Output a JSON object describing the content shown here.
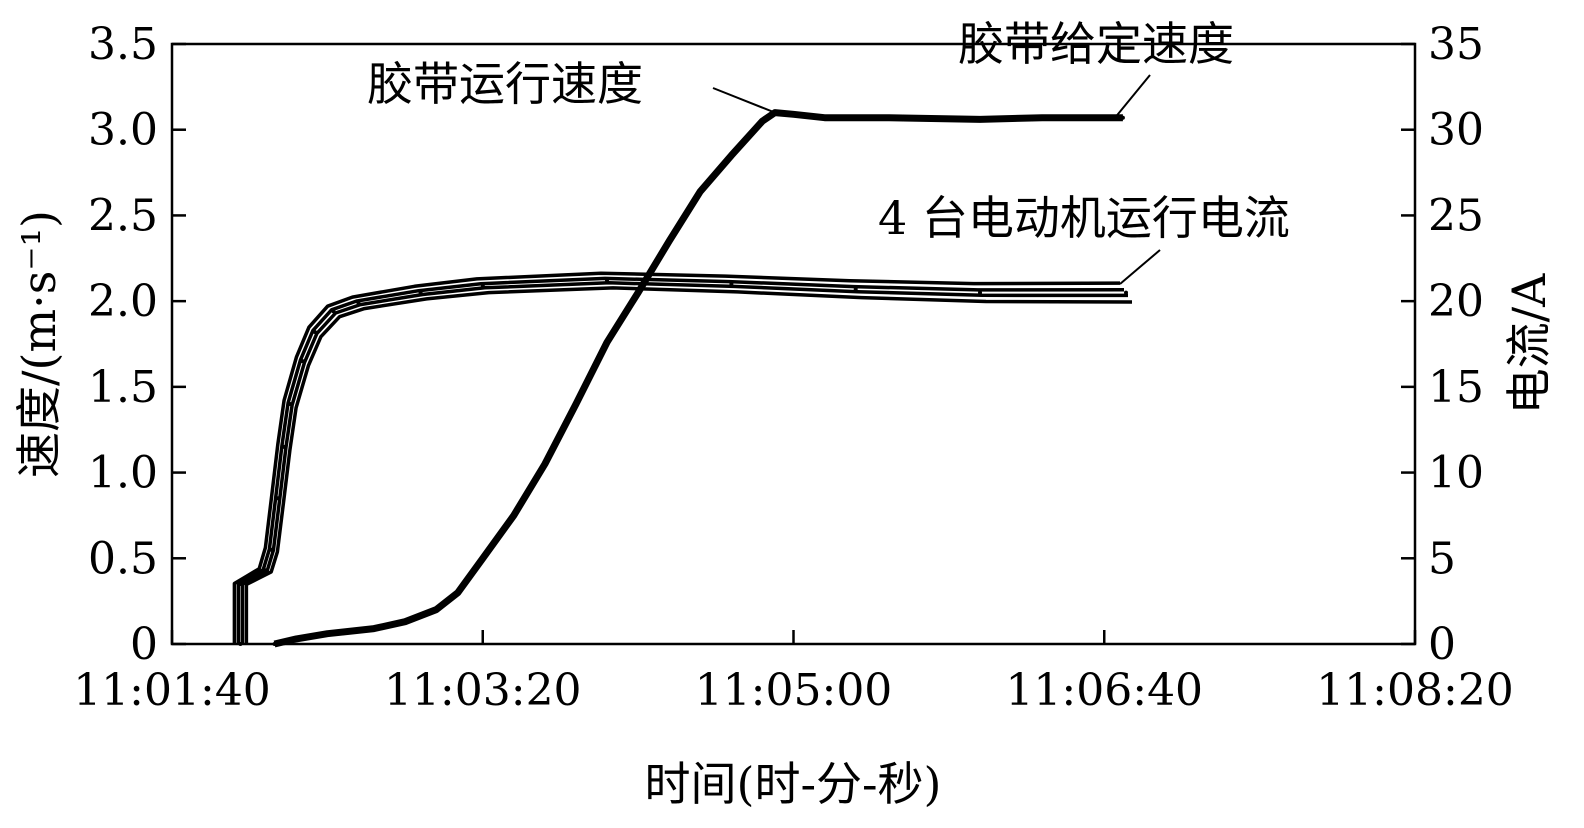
{
  "chart_data": {
    "type": "line",
    "title": "",
    "xlabel": "时间(时-分-秒)",
    "ylabel": "速度/(m·s⁻¹)",
    "y2label": "电流/A",
    "xlim": [
      "11:01:40",
      "11:08:20"
    ],
    "x_ticks": [
      "11:01:40",
      "11:03:20",
      "11:05:00",
      "11:06:40",
      "11:08:20"
    ],
    "ylim": [
      0,
      3.5
    ],
    "y_ticks": [
      "0",
      "0.5",
      "1.0",
      "1.5",
      "2.0",
      "2.5",
      "3.0",
      "3.5"
    ],
    "y2lim": [
      0,
      35
    ],
    "y2_ticks": [
      "0",
      "5",
      "10",
      "15",
      "20",
      "25",
      "30",
      "35"
    ],
    "grid": false,
    "legend": "none",
    "annotations": [
      {
        "text": "胶带运行速度"
      },
      {
        "text": "胶带给定速度"
      },
      {
        "text": "4 台电动机运行电流"
      }
    ],
    "series": [
      {
        "axis": "left",
        "unit": "m/s",
        "points": [
          [
            "11:02:13",
            0
          ],
          [
            "11:02:20",
            0.03
          ],
          [
            "11:02:30",
            0.06
          ],
          [
            "11:02:45",
            0.09
          ],
          [
            "11:02:55",
            0.13
          ],
          [
            "11:03:05",
            0.2
          ],
          [
            "11:03:12",
            0.3
          ],
          [
            "11:03:20",
            0.5
          ],
          [
            "11:03:30",
            0.75
          ],
          [
            "11:03:40",
            1.05
          ],
          [
            "11:03:50",
            1.4
          ],
          [
            "11:04:00",
            1.76
          ],
          [
            "11:04:10",
            2.05
          ],
          [
            "11:04:20",
            2.35
          ],
          [
            "11:04:30",
            2.64
          ],
          [
            "11:04:40",
            2.85
          ],
          [
            "11:04:50",
            3.05
          ],
          [
            "11:04:54",
            3.1
          ],
          [
            "11:05:00",
            3.09
          ],
          [
            "11:05:10",
            3.07
          ],
          [
            "11:05:30",
            3.07
          ],
          [
            "11:06:00",
            3.06
          ],
          [
            "11:06:20",
            3.07
          ],
          [
            "11:06:46",
            3.07
          ]
        ]
      },
      {
        "axis": "right",
        "unit": "A",
        "points": [
          [
            "11:02:02",
            0
          ],
          [
            "11:02:02",
            3.5
          ],
          [
            "11:02:06",
            3.9
          ],
          [
            "11:02:10",
            4.3
          ],
          [
            "11:02:12",
            5.5
          ],
          [
            "11:02:14",
            8.5
          ],
          [
            "11:02:16",
            11.5
          ],
          [
            "11:02:18",
            14
          ],
          [
            "11:02:22",
            16.5
          ],
          [
            "11:02:26",
            18.2
          ],
          [
            "11:02:32",
            19.4
          ],
          [
            "11:02:40",
            19.9
          ],
          [
            "11:03:00",
            20.5
          ],
          [
            "11:03:20",
            20.9
          ],
          [
            "11:04:00",
            21.2
          ],
          [
            "11:04:40",
            21
          ],
          [
            "11:05:20",
            20.7
          ],
          [
            "11:06:00",
            20.5
          ],
          [
            "11:06:47",
            20.5
          ]
        ]
      }
    ]
  }
}
